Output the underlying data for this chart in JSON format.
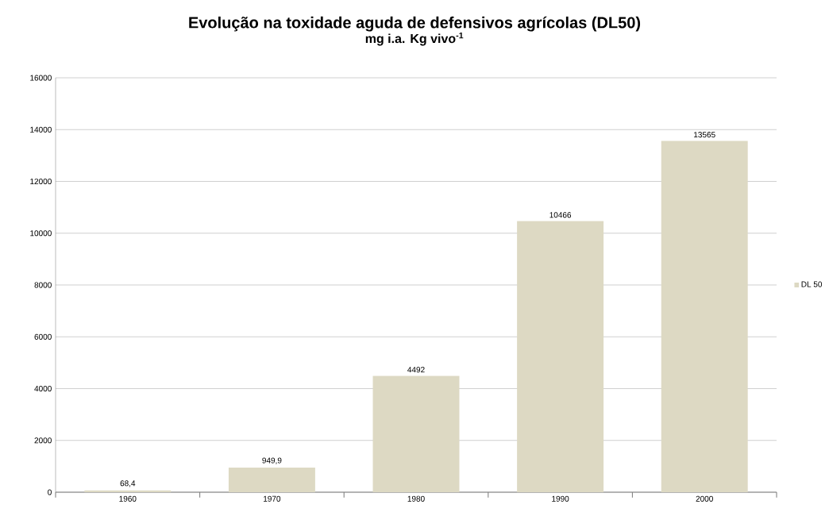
{
  "chart_data": {
    "type": "bar",
    "title": "Evolução na toxidade aguda de defensivos agrícolas (DL50)",
    "subtitle": "mg i.a. Kg vivo$^{-1}$",
    "categories": [
      "1960",
      "1970",
      "1980",
      "1990",
      "2000"
    ],
    "series": [
      {
        "name": "DL 50",
        "color": "#ddd9c3",
        "values": [
          68.4,
          949.9,
          4492,
          10466,
          13565
        ]
      }
    ],
    "value_labels": [
      "68,4",
      "949,9",
      "4492",
      "10466",
      "13565"
    ],
    "ylim": [
      0,
      16000
    ],
    "yticks": [
      0,
      2000,
      4000,
      6000,
      8000,
      10000,
      12000,
      14000,
      16000
    ],
    "grid": "y",
    "legend": "right"
  }
}
